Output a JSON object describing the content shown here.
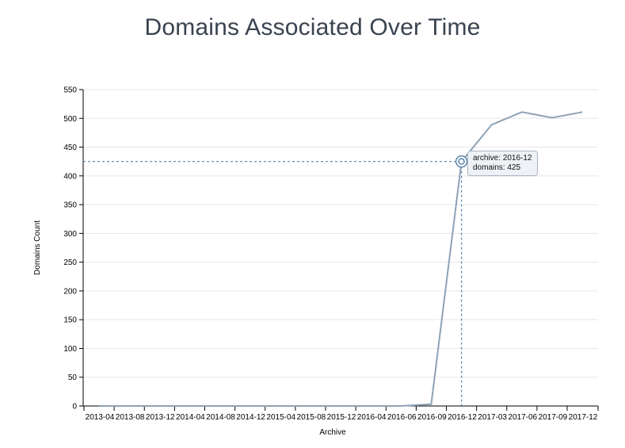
{
  "chart_data": {
    "type": "line",
    "title": "Domains Associated Over Time",
    "xlabel": "Archive",
    "ylabel": "Domains Count",
    "ylim": [
      0,
      550
    ],
    "yticks": [
      0,
      50,
      100,
      150,
      200,
      250,
      300,
      350,
      400,
      450,
      500,
      550
    ],
    "xtick_labels": [
      "2013-04",
      "2013-08",
      "2013-12",
      "2014-04",
      "2014-08",
      "2014-12",
      "2015-04",
      "2015-08",
      "2015-12",
      "2016-04",
      "2016-06",
      "2016-09",
      "2016-12",
      "2017-03",
      "2017-06",
      "2017-09",
      "2017-12"
    ],
    "x": [
      "2013-04",
      "2013-08",
      "2013-12",
      "2014-04",
      "2014-08",
      "2014-12",
      "2015-04",
      "2015-08",
      "2015-12",
      "2016-04",
      "2016-06",
      "2016-09",
      "2016-12",
      "2017-03",
      "2017-06",
      "2017-09",
      "2017-12"
    ],
    "values": [
      0,
      0,
      0,
      0,
      0,
      0,
      0,
      0,
      0,
      0,
      0,
      3,
      425,
      489,
      511,
      501,
      511
    ],
    "grid": "horizontal",
    "line_color": "#8da2b5",
    "hover_color": "#5b84a8",
    "tooltip": {
      "archive_line": "archive: 2016-12",
      "domains_line": "domains: 425",
      "value": 425,
      "category": "2016-12"
    }
  }
}
